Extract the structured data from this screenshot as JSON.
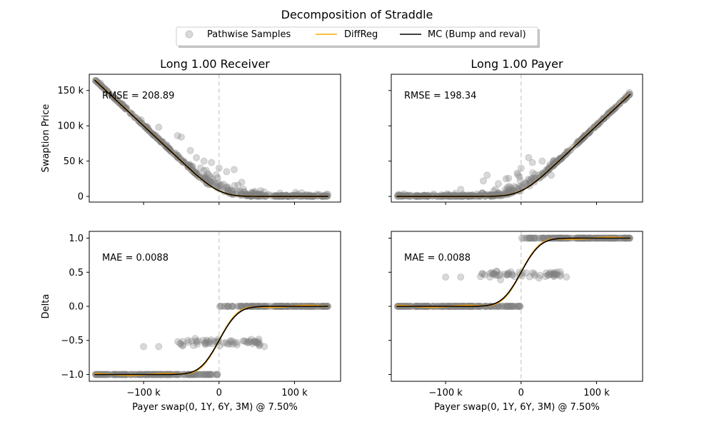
{
  "chart_data": {
    "type": "scatter",
    "suptitle": "Decomposition of Straddle",
    "legend": {
      "placement": "top-center",
      "entries": [
        {
          "label": "Pathwise Samples",
          "marker": "circle",
          "color": "#808080"
        },
        {
          "label": "DiffReg",
          "marker": "line",
          "color": "#ffa500"
        },
        {
          "label": "MC (Bump and reval)",
          "marker": "line",
          "color": "#000000"
        }
      ]
    },
    "xlabel": "Payer swap(0, 1Y, 6Y, 3M) @ 7.50%",
    "xlim": [
      -172000,
      161000
    ],
    "xticks": [
      {
        "v": -100000,
        "label": "−100 k"
      },
      {
        "v": 0,
        "label": "0"
      },
      {
        "v": 100000,
        "label": "100 k"
      }
    ],
    "colors": {
      "samples": "#808080",
      "diffreg": "#ffa500",
      "mc": "#000000",
      "vline": "#d3d3d3"
    },
    "rows": [
      {
        "ylabel": "Swaption Price",
        "ylim": [
          -8000,
          173000
        ],
        "yticks": [
          {
            "v": 0,
            "label": "0"
          },
          {
            "v": 50000,
            "label": "50 k"
          },
          {
            "v": 100000,
            "label": "100 k"
          },
          {
            "v": 150000,
            "label": "150 k"
          }
        ]
      },
      {
        "ylabel": "Delta",
        "ylim": [
          -1.1,
          1.1
        ],
        "yticks": [
          {
            "v": -1.0,
            "label": "−1.0"
          },
          {
            "v": -0.5,
            "label": "−0.5"
          },
          {
            "v": 0.0,
            "label": "0.0"
          },
          {
            "v": 0.5,
            "label": "0.5"
          },
          {
            "v": 1.0,
            "label": "1.0"
          }
        ]
      }
    ],
    "columns": [
      {
        "title": "Long 1.00 Receiver",
        "side": "receiver",
        "price_annotation": "RMSE = 208.89",
        "delta_annotation": "MAE = 0.0088"
      },
      {
        "title": "Long 1.00 Payer",
        "side": "payer",
        "price_annotation": "RMSE = 198.34",
        "delta_annotation": "MAE = 0.0088"
      }
    ],
    "model": {
      "x_min": -165000,
      "x_max": 145000,
      "sigma": 20000,
      "vline_x": 0
    },
    "samples": {
      "count": 420,
      "delta_bands": {
        "receiver": [
          -1.0,
          -0.53,
          0.0
        ],
        "payer": [
          0.0,
          0.47,
          1.0
        ]
      },
      "price_outliers": {
        "receiver": [
          [
            -80000,
            98000
          ],
          [
            -55000,
            86000
          ],
          [
            -50000,
            84000
          ],
          [
            -38000,
            65000
          ],
          [
            -30000,
            55000
          ],
          [
            -20000,
            50000
          ],
          [
            -10000,
            48000
          ],
          [
            0,
            40000
          ],
          [
            10000,
            35000
          ],
          [
            20000,
            38000
          ],
          [
            30000,
            20000
          ],
          [
            55000,
            8000
          ]
        ],
        "payer": [
          [
            -80000,
            10000
          ],
          [
            -50000,
            22000
          ],
          [
            -45000,
            30000
          ],
          [
            -30000,
            18000
          ],
          [
            -20000,
            25000
          ],
          [
            -5000,
            33000
          ],
          [
            0,
            40000
          ],
          [
            10000,
            55000
          ],
          [
            15000,
            48000
          ],
          [
            28000,
            50000
          ],
          [
            40000,
            30000
          ]
        ]
      }
    }
  }
}
